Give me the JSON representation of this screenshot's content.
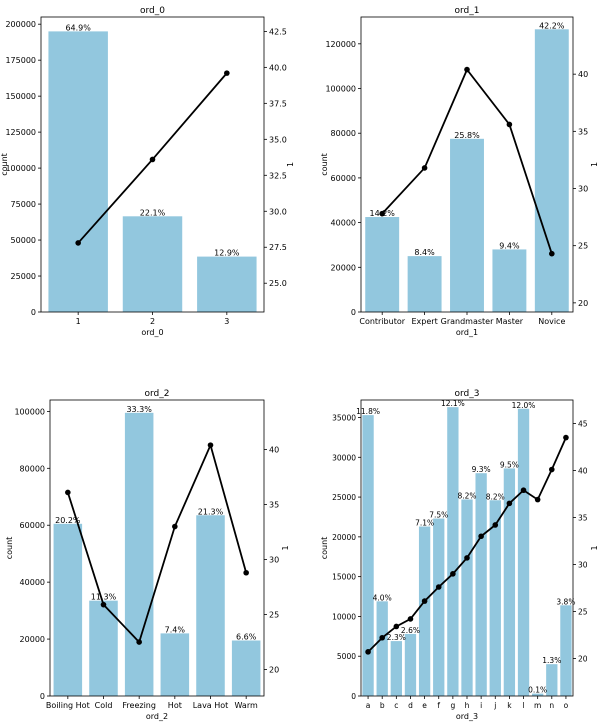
{
  "chart_data": [
    {
      "type": "bar",
      "title": "ord_0",
      "xlabel": "ord_0",
      "ylabel": "count",
      "y2label": "1",
      "categories": [
        "1",
        "2",
        "3"
      ],
      "values": [
        195000,
        66500,
        38500
      ],
      "percent_labels": [
        "64.9%",
        "22.1%",
        "12.9%"
      ],
      "line_values": [
        27.8,
        33.6,
        39.6
      ],
      "ylim": [
        0,
        205000
      ],
      "yticks": [
        0,
        25000,
        50000,
        75000,
        100000,
        125000,
        150000,
        175000,
        200000
      ],
      "y2lim": [
        23.0,
        43.5
      ],
      "y2ticks": [
        25.0,
        27.5,
        30.0,
        32.5,
        35.0,
        37.5,
        40.0,
        42.5
      ]
    },
    {
      "type": "bar",
      "title": "ord_1",
      "xlabel": "ord_1",
      "ylabel": "count",
      "y2label": "1",
      "categories": [
        "Contributor",
        "Expert",
        "Grandmaster",
        "Master",
        "Novice"
      ],
      "values": [
        42500,
        25000,
        77500,
        28000,
        126500
      ],
      "percent_labels": [
        "14.2%",
        "8.4%",
        "25.8%",
        "9.4%",
        "42.2%"
      ],
      "line_values": [
        27.8,
        31.8,
        40.4,
        35.6,
        24.3
      ],
      "ylim": [
        0,
        132000
      ],
      "yticks": [
        0,
        20000,
        40000,
        60000,
        80000,
        100000,
        120000
      ],
      "y2lim": [
        19.2,
        45.0
      ],
      "y2ticks": [
        20,
        25,
        30,
        35,
        40
      ]
    },
    {
      "type": "bar",
      "title": "ord_2",
      "xlabel": "ord_2",
      "ylabel": "count",
      "y2label": "1",
      "categories": [
        "Boiling Hot",
        "Cold",
        "Freezing",
        "Hot",
        "Lava Hot",
        "Warm"
      ],
      "values": [
        60500,
        33500,
        99500,
        22000,
        63500,
        19500
      ],
      "percent_labels": [
        "20.2%",
        "11.3%",
        "33.3%",
        "7.4%",
        "21.3%",
        "6.6%"
      ],
      "line_values": [
        36.1,
        25.9,
        22.5,
        33.0,
        40.4,
        28.8
      ],
      "ylim": [
        0,
        104000
      ],
      "yticks": [
        0,
        20000,
        40000,
        60000,
        80000,
        100000
      ],
      "y2lim": [
        17.6,
        44.5
      ],
      "y2ticks": [
        20,
        25,
        30,
        35,
        40
      ]
    },
    {
      "type": "bar",
      "title": "ord_3",
      "xlabel": "ord_3",
      "ylabel": "count",
      "y2label": "1",
      "categories": [
        "a",
        "b",
        "c",
        "d",
        "e",
        "f",
        "g",
        "h",
        "i",
        "j",
        "k",
        "l",
        "m",
        "n",
        "o"
      ],
      "values": [
        35300,
        11900,
        6900,
        7800,
        21300,
        22300,
        36300,
        24700,
        28000,
        24600,
        28600,
        36100,
        300,
        4000,
        11400
      ],
      "percent_labels": [
        "11.8%",
        "4.0%",
        "2.3%",
        "2.6%",
        "7.1%",
        "7.5%",
        "12.1%",
        "8.2%",
        "9.3%",
        "8.2%",
        "9.5%",
        "12.0%",
        "0.1%",
        "1.3%",
        "3.8%"
      ],
      "line_values": [
        20.7,
        22.2,
        23.4,
        24.2,
        26.1,
        27.6,
        29.0,
        30.7,
        33.0,
        34.2,
        36.5,
        37.9,
        36.9,
        40.1,
        43.5
      ],
      "ylim": [
        0,
        37200
      ],
      "yticks": [
        0,
        5000,
        10000,
        15000,
        20000,
        25000,
        30000,
        35000
      ],
      "y2lim": [
        16.0,
        47.5
      ],
      "y2ticks": [
        20,
        25,
        30,
        35,
        40,
        45
      ]
    }
  ],
  "colors": {
    "bar": "#92c7de",
    "line": "#000000",
    "axis": "#000000"
  }
}
